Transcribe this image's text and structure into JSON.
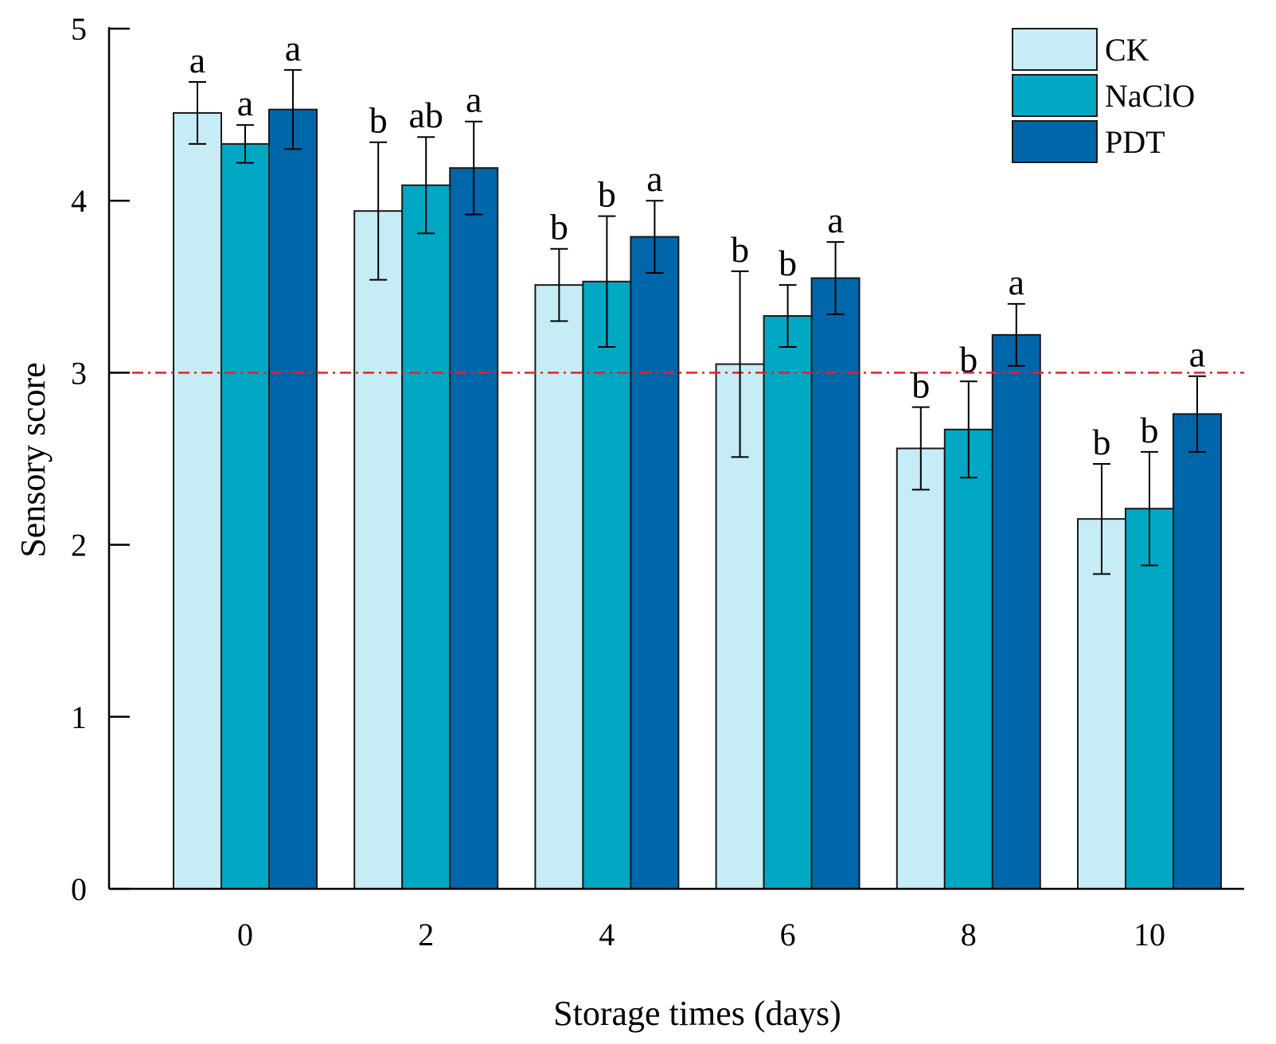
{
  "chart_data": {
    "type": "bar",
    "title": "",
    "xlabel": "Storage times (days)",
    "ylabel": "Sensory score",
    "ylim": [
      0,
      5
    ],
    "yticks": [
      "0",
      "1",
      "2",
      "3",
      "4",
      "5"
    ],
    "categories": [
      "0",
      "2",
      "4",
      "6",
      "8",
      "10"
    ],
    "series": [
      {
        "name": "CK",
        "color": "#c6ecf5",
        "values": [
          4.51,
          3.94,
          3.51,
          3.05,
          2.56,
          2.15
        ],
        "errors": [
          0.18,
          0.4,
          0.21,
          0.54,
          0.24,
          0.32
        ],
        "letters": [
          "a",
          "b",
          "b",
          "b",
          "b",
          "b"
        ]
      },
      {
        "name": "NaClO",
        "color": "#00a8c4",
        "values": [
          4.33,
          4.09,
          3.53,
          3.33,
          2.67,
          2.21
        ],
        "errors": [
          0.11,
          0.28,
          0.38,
          0.18,
          0.28,
          0.33
        ],
        "letters": [
          "a",
          "ab",
          "b",
          "b",
          "b",
          "b"
        ]
      },
      {
        "name": "PDT",
        "color": "#0066aa",
        "values": [
          4.53,
          4.19,
          3.79,
          3.55,
          3.22,
          2.76
        ],
        "errors": [
          0.23,
          0.27,
          0.21,
          0.21,
          0.18,
          0.22
        ],
        "letters": [
          "a",
          "a",
          "a",
          "a",
          "a",
          "a"
        ]
      }
    ],
    "reference_line": {
      "y": 3,
      "color": "#e8202a",
      "style": "dash-dot"
    },
    "legend": {
      "position": "top-right"
    },
    "grid": false
  }
}
